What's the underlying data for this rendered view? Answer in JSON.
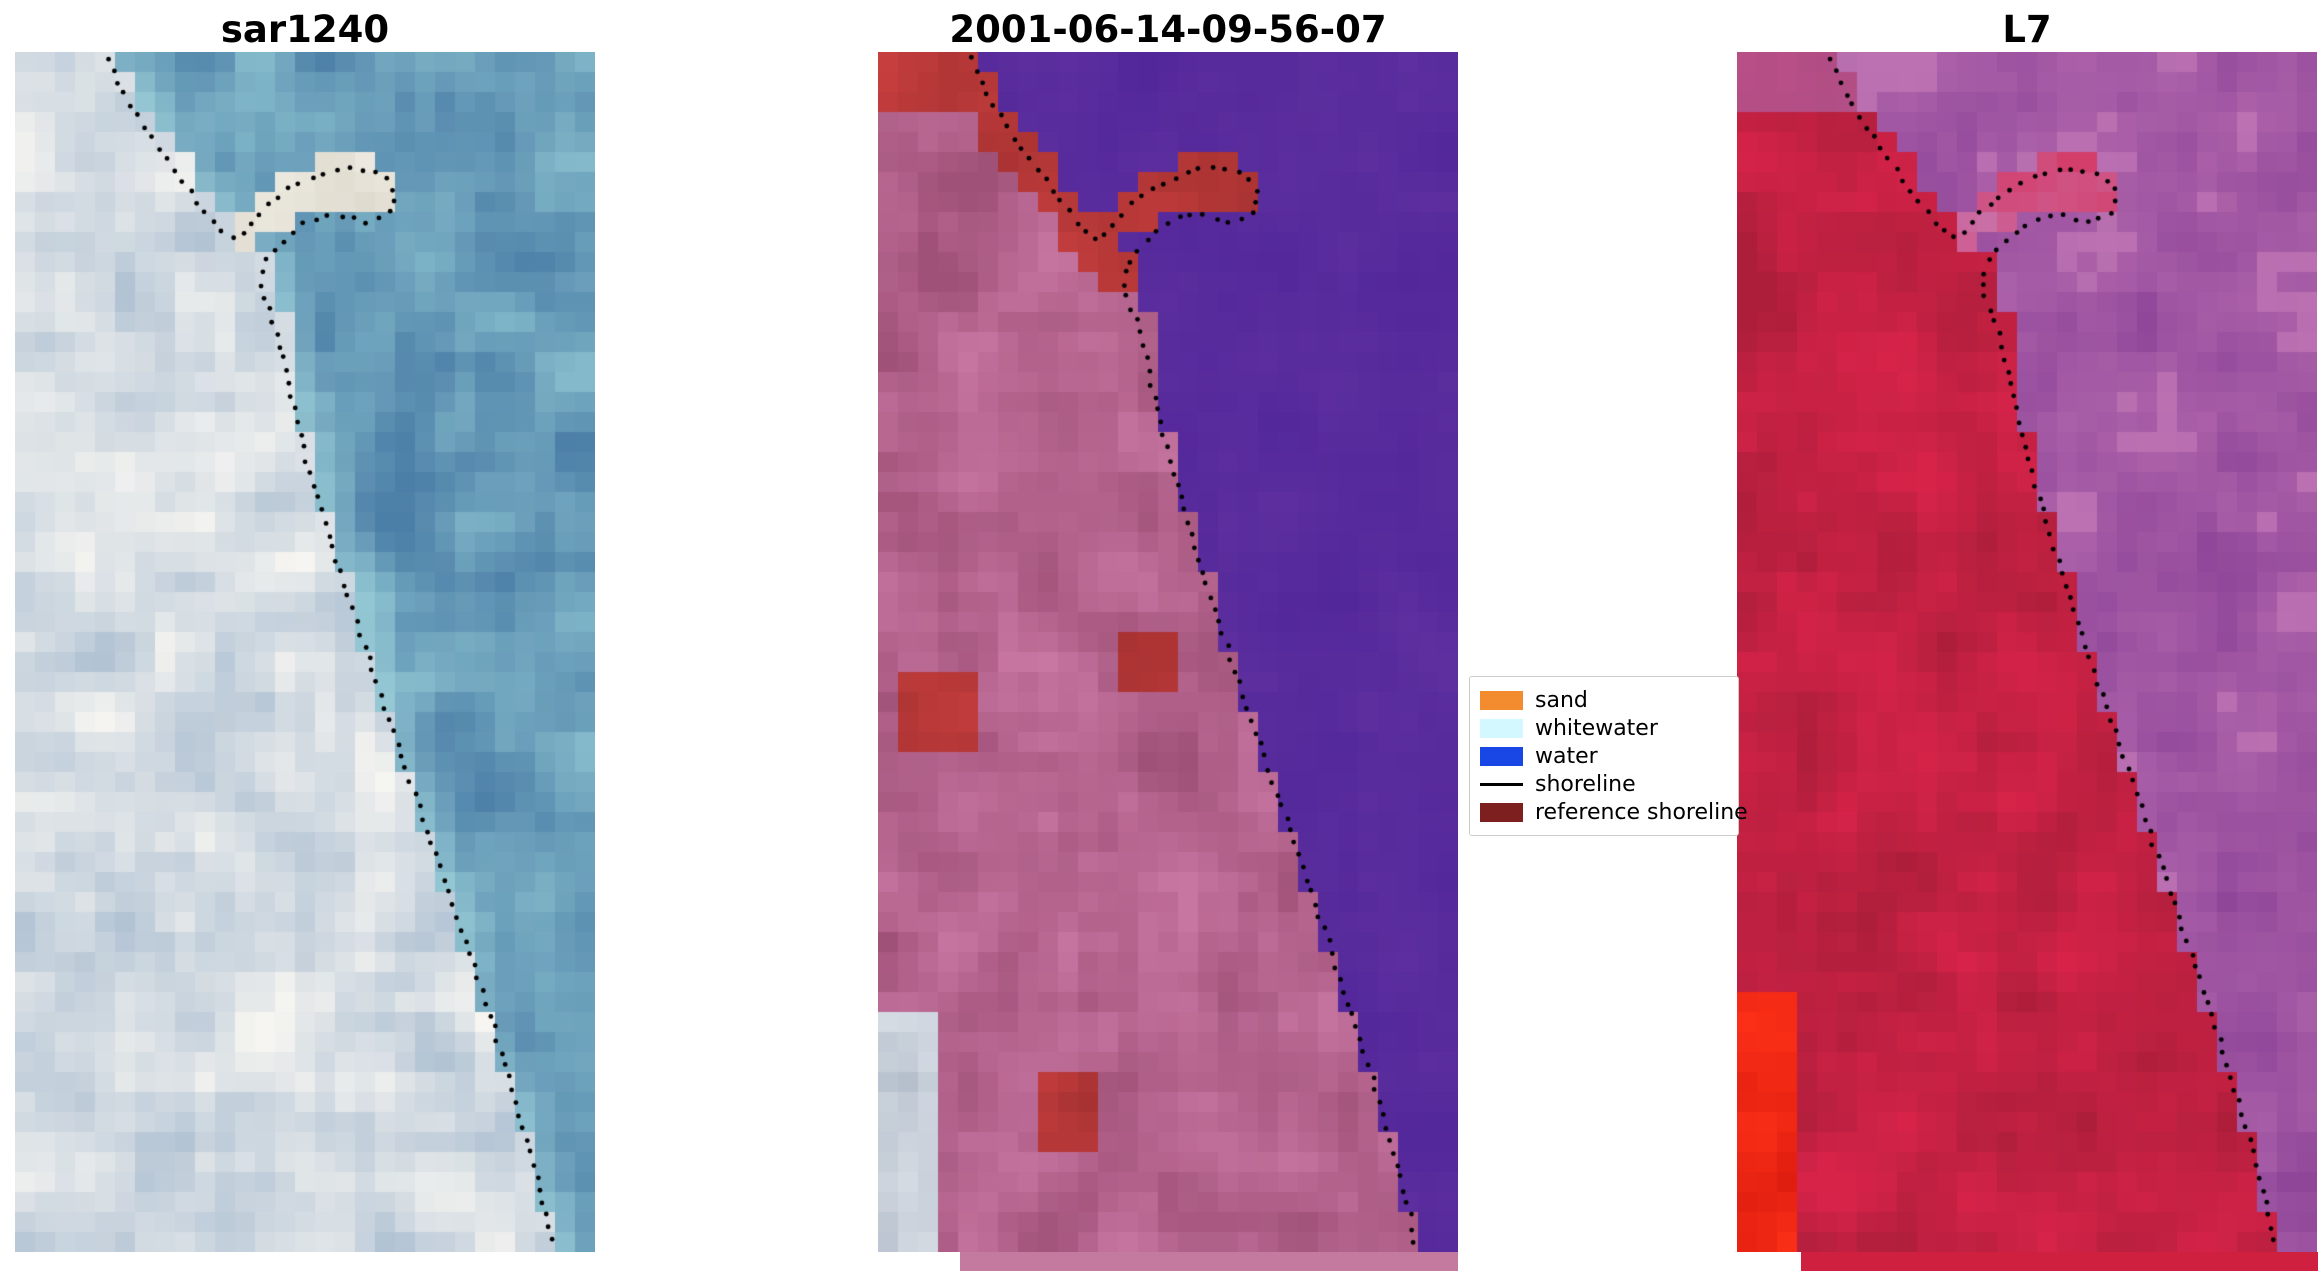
{
  "figure": {
    "background": "#ffffff",
    "panels": [
      {
        "title": "sar1240",
        "palette": {
          "land_light": "#f6f5f1",
          "land_dark": "#b2c3d4",
          "water_dark": "#4c7fa7",
          "water_light": "#83b9ca",
          "fringe": "#aadbdf",
          "spit_light": "#f1eee6",
          "spit_dark": "#d9d4c6"
        }
      },
      {
        "title": "2001-06-14-09-56-07",
        "palette": {
          "land_light": "#c877a3",
          "land_dark": "#a05177",
          "water_dark": "#52279a",
          "water_light": "#5d2f9f",
          "red_light": "#c73e3e",
          "red_dark": "#a83232",
          "gray_light": "#e2e6ec",
          "gray_dark": "#b6c0cd",
          "bar": "#c4799f"
        }
      },
      {
        "title": "L7",
        "palette": {
          "land_light": "#d82349",
          "land_dark": "#ac1e3a",
          "water_dark": "#8f4699",
          "water_light": "#b267ac",
          "pink": "#c77eb9",
          "bright_light": "#ff3118",
          "bright_dark": "#e01e10",
          "bar": "#cf2040"
        }
      }
    ],
    "legend": {
      "items": [
        {
          "label": "sand",
          "color": "#f28c2e",
          "swatch": "patch"
        },
        {
          "label": "whitewater",
          "color": "#d3f8ff",
          "swatch": "patch"
        },
        {
          "label": "water",
          "color": "#1847e6",
          "swatch": "patch"
        },
        {
          "label": "shoreline",
          "color": "#000000",
          "swatch": "line"
        },
        {
          "label": "reference shoreline",
          "color": "#7d1f1f",
          "swatch": "patch"
        }
      ]
    },
    "shoreline": {
      "color": "#000000"
    }
  }
}
